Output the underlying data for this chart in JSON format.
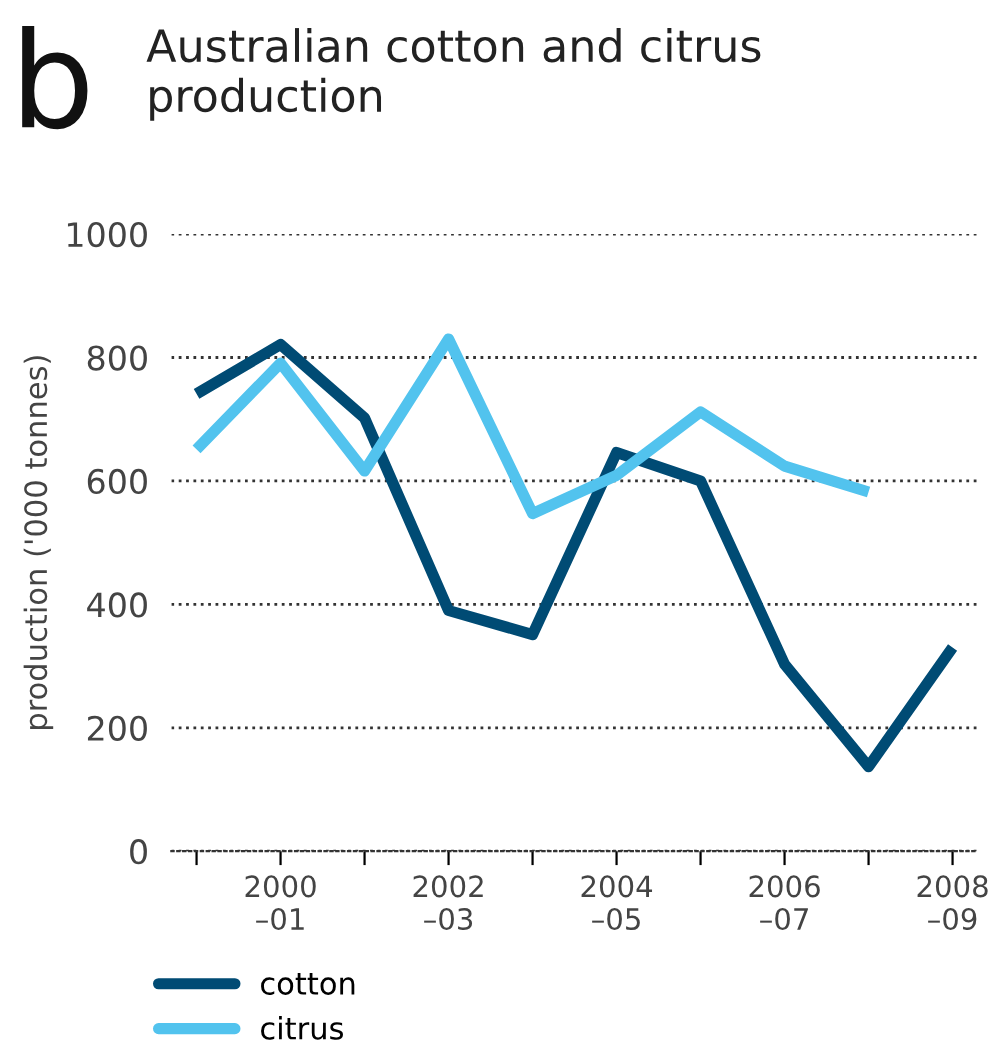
{
  "chart_data": {
    "type": "line",
    "title": "Australian cotton and citrus production",
    "ylabel": "production ('000 tonnes)",
    "annotations": [
      "b"
    ],
    "categories": [
      null,
      "2000\n–01",
      null,
      "2002\n–03",
      null,
      "2004\n–05",
      null,
      "2006\n–07",
      null,
      "2008\n–09"
    ],
    "series": [
      {
        "name": "cotton",
        "color": "#004b74",
        "values": [
          741,
          821,
          702,
          390,
          351,
          646,
          600,
          303,
          137,
          330
        ]
      },
      {
        "name": "citrus",
        "color": "#52c3ee",
        "values": [
          651,
          791,
          616,
          830,
          547,
          609,
          712,
          624,
          582,
          null
        ]
      }
    ],
    "ylim": [
      0,
      1000
    ],
    "yticks": [
      0,
      200,
      400,
      600,
      800,
      1000
    ],
    "grid": "y",
    "legend": "bottom",
    "marker": "none",
    "line_style": "solid"
  }
}
